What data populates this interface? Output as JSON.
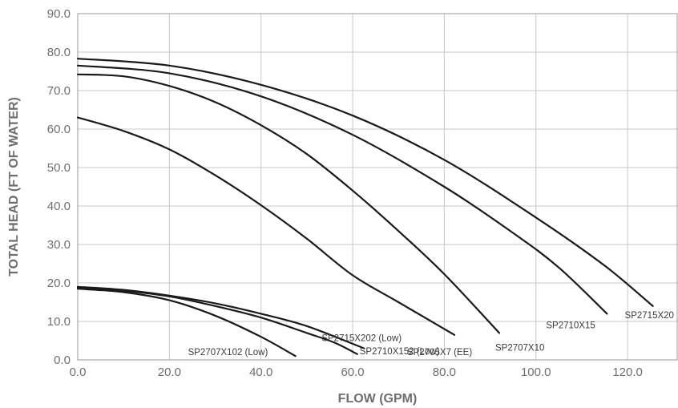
{
  "chart_data": {
    "type": "line",
    "title": "",
    "xlabel": "FLOW (GPM)",
    "ylabel": "TOTAL HEAD (FT OF WATER)",
    "xlim": [
      0,
      131
    ],
    "ylim": [
      0,
      90
    ],
    "xticks": [
      "0.0",
      "20.0",
      "40.0",
      "60.0",
      "80.0",
      "100.0",
      "120.0"
    ],
    "yticks": [
      "0.0",
      "10.0",
      "20.0",
      "30.0",
      "40.0",
      "50.0",
      "60.0",
      "70.0",
      "80.0",
      "90.0"
    ],
    "grid": true,
    "legend": "none",
    "series": [
      {
        "name": "SP2715X20",
        "x": [
          0,
          20,
          40,
          60,
          80,
          100,
          115,
          125.5
        ],
        "y": [
          78.3,
          76.5,
          71.5,
          63.5,
          52,
          37,
          24.5,
          14
        ]
      },
      {
        "name": "SP2710X15",
        "x": [
          0,
          20,
          40,
          60,
          80,
          95,
          105,
          115.5
        ],
        "y": [
          76.5,
          74.5,
          68.5,
          58.5,
          45,
          33,
          24,
          12
        ]
      },
      {
        "name": "SP2707X10",
        "x": [
          0,
          10,
          20,
          30,
          40,
          50,
          60,
          70,
          80,
          92
        ],
        "y": [
          74.2,
          73.7,
          71.2,
          67,
          61,
          53.5,
          44,
          33.5,
          22.3,
          7
        ]
      },
      {
        "name": "SP2705X7 (EE)",
        "x": [
          0,
          10,
          20,
          30,
          40,
          50,
          60,
          70,
          82.2
        ],
        "y": [
          63,
          59.5,
          54.7,
          48,
          40.2,
          31.5,
          22,
          15,
          6.5
        ]
      },
      {
        "name": "SP2715X202 (Low)",
        "x": [
          0,
          10,
          20,
          30,
          40,
          50,
          62.5
        ],
        "y": [
          19,
          18.2,
          16.7,
          14.7,
          12,
          8.8,
          3
        ]
      },
      {
        "name": "SP2710X152 (Low)",
        "x": [
          0,
          10,
          20,
          30,
          40,
          50,
          56,
          61
        ],
        "y": [
          18.8,
          18,
          16.5,
          14,
          11,
          7,
          4.5,
          1.5
        ]
      },
      {
        "name": "SP2707X102 (Low)",
        "x": [
          0,
          10,
          20,
          30,
          40,
          47.5
        ],
        "y": [
          18.5,
          17.6,
          15.5,
          11.5,
          6,
          1
        ]
      }
    ]
  }
}
